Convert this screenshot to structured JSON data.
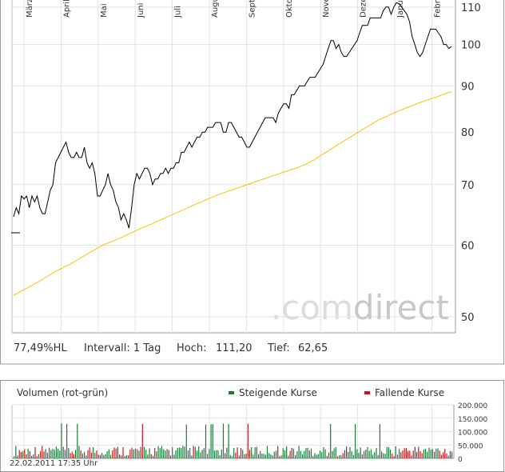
{
  "chart_data": [
    {
      "type": "line",
      "scale": "log",
      "ylim": [
        48,
        112
      ],
      "yticks": [
        50,
        60,
        70,
        80,
        90,
        100,
        110
      ],
      "month_labels": [
        "März",
        "April",
        "Mai",
        "Juni",
        "Juli",
        "August",
        "September",
        "Oktober",
        "November",
        "Dezember",
        "Januar",
        "Februar"
      ],
      "series": [
        {
          "role": "price",
          "color": "#000000",
          "values": [
            64.5,
            66,
            65,
            68,
            67.5,
            68,
            66,
            68,
            67,
            68,
            66,
            65,
            65,
            67,
            69,
            70,
            74,
            75,
            76,
            77,
            78,
            76,
            75,
            75,
            76,
            75,
            75,
            77,
            74,
            73,
            74,
            72,
            68,
            68,
            69,
            70,
            72,
            70,
            69,
            67,
            66,
            64,
            65,
            64,
            62.65,
            66,
            70,
            72,
            71,
            72,
            73,
            73,
            72,
            70,
            71,
            71,
            72,
            72,
            73,
            72,
            73,
            73,
            74,
            74,
            76,
            76,
            77,
            78,
            77,
            78,
            79,
            79,
            80,
            80,
            81,
            81,
            81,
            82,
            82,
            82,
            80,
            80,
            82,
            82,
            81,
            80,
            79,
            79,
            78,
            77,
            77,
            78,
            79,
            80,
            81,
            82,
            83,
            83,
            83,
            83,
            82,
            84,
            85,
            86,
            86,
            85,
            88,
            88,
            89,
            90,
            90,
            90,
            91,
            92,
            92,
            92,
            93,
            94,
            95,
            97,
            99,
            101,
            101,
            99,
            100,
            98,
            97,
            97,
            98,
            99,
            100,
            101,
            103,
            105,
            105,
            105,
            107,
            107,
            107,
            107,
            107,
            109,
            110,
            110,
            108,
            110,
            111.2,
            111,
            110,
            109,
            108,
            106,
            102,
            100,
            98,
            97,
            98,
            100,
            102,
            104,
            104,
            104,
            103,
            102,
            100,
            100,
            99,
            99.5
          ]
        },
        {
          "role": "200-day average",
          "color": "#f5c400",
          "values": [
            52.8,
            53.4,
            54,
            54.6,
            55.3,
            56,
            56.6,
            57.2,
            57.9,
            58.6,
            59.3,
            60,
            60.5,
            61,
            61.6,
            62.2,
            62.8,
            63.3,
            63.9,
            64.5,
            65.1,
            65.7,
            66.3,
            66.9,
            67.5,
            68.1,
            68.6,
            69.1,
            69.6,
            70.1,
            70.6,
            71.1,
            71.6,
            72.1,
            72.6,
            73.1,
            73.7,
            74.5,
            75.5,
            76.5,
            77.5,
            78.5,
            79.5,
            80.5,
            81.5,
            82.5,
            83.3,
            84.1,
            84.8,
            85.5,
            86.2,
            86.8,
            87.4,
            88.1,
            88.7
          ]
        }
      ]
    },
    {
      "type": "bar",
      "title": "Volumen (rot-grün)",
      "ylim": [
        0,
        200000
      ],
      "yticks": [
        "200.000",
        "150.000",
        "100.000",
        "50.000",
        "0"
      ],
      "legend": {
        "up": "Steigende Kurse",
        "down": "Fallende Kurse",
        "up_color": "#1a7a3a",
        "down_color": "#c0181c"
      }
    }
  ],
  "stats": {
    "pct": "77,49%HL",
    "interval_label": "Intervall: 1 Tag",
    "high_label": "Hoch:",
    "high_value": "111,20",
    "low_label": "Tief:",
    "low_value": "62,65"
  },
  "watermark": {
    "part1": ".com",
    "part2": "direct"
  },
  "timestamp": "22.02.2011 17:35 Uhr"
}
